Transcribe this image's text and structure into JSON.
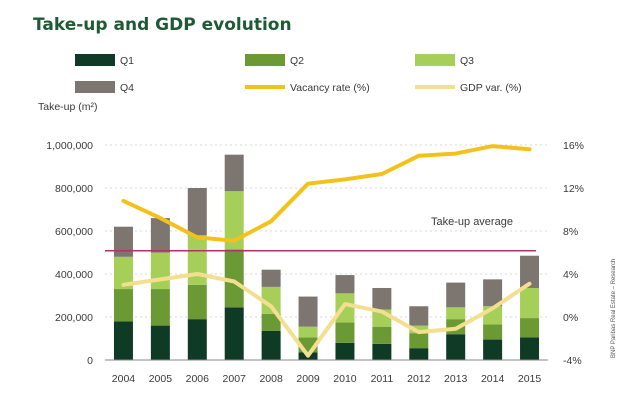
{
  "chart_data": {
    "type": "bar",
    "title": "Take-up and GDP evolution",
    "ylabel": "Take-up (m²)",
    "categories": [
      "2004",
      "2005",
      "2006",
      "2007",
      "2008",
      "2009",
      "2010",
      "2011",
      "2012",
      "2013",
      "2014",
      "2015"
    ],
    "ylim": [
      0,
      1000000
    ],
    "y_ticks": [
      "1,000,000",
      "800,000",
      "600,000",
      "400,000",
      "200,000",
      "0"
    ],
    "y2lim": [
      -4,
      16
    ],
    "y2_ticks": [
      "16%",
      "12%",
      "8%",
      "4%",
      "0%",
      "-4%"
    ],
    "stacked_series": [
      {
        "name": "Q1",
        "color": "#0e3a26",
        "values": [
          180000,
          160000,
          190000,
          245000,
          135000,
          35000,
          80000,
          75000,
          55000,
          120000,
          95000,
          105000
        ]
      },
      {
        "name": "Q2",
        "color": "#6b9a35",
        "values": [
          150000,
          170000,
          160000,
          270000,
          80000,
          70000,
          95000,
          80000,
          70000,
          70000,
          70000,
          90000
        ]
      },
      {
        "name": "Q3",
        "color": "#a6cf5a",
        "values": [
          150000,
          170000,
          230000,
          270000,
          125000,
          50000,
          135000,
          80000,
          35000,
          55000,
          85000,
          140000
        ]
      },
      {
        "name": "Q4",
        "color": "#7c7570",
        "values": [
          140000,
          160000,
          220000,
          170000,
          80000,
          140000,
          85000,
          100000,
          90000,
          115000,
          125000,
          150000
        ]
      }
    ],
    "line_series": [
      {
        "name": "Vacancy rate (%)",
        "color": "#f2c21b",
        "axis": "right",
        "values": [
          10.8,
          9.2,
          7.4,
          7.1,
          8.9,
          12.4,
          12.8,
          13.3,
          15.0,
          15.2,
          15.9,
          15.6
        ]
      },
      {
        "name": "GDP var. (%)",
        "color": "#f3df8f",
        "axis": "right",
        "values": [
          3.0,
          3.5,
          4.0,
          3.3,
          1.0,
          -3.6,
          1.2,
          0.5,
          -1.4,
          -1.1,
          0.8,
          3.1
        ]
      }
    ],
    "reference_line": {
      "label": "Take-up average",
      "value": 508000,
      "color": "#b0306e"
    },
    "legend": [
      "Q1",
      "Q2",
      "Q3",
      "Q4",
      "Vacancy rate (%)",
      "GDP var. (%)"
    ],
    "source_note": "BNP Paribas Real Estate – Research"
  }
}
